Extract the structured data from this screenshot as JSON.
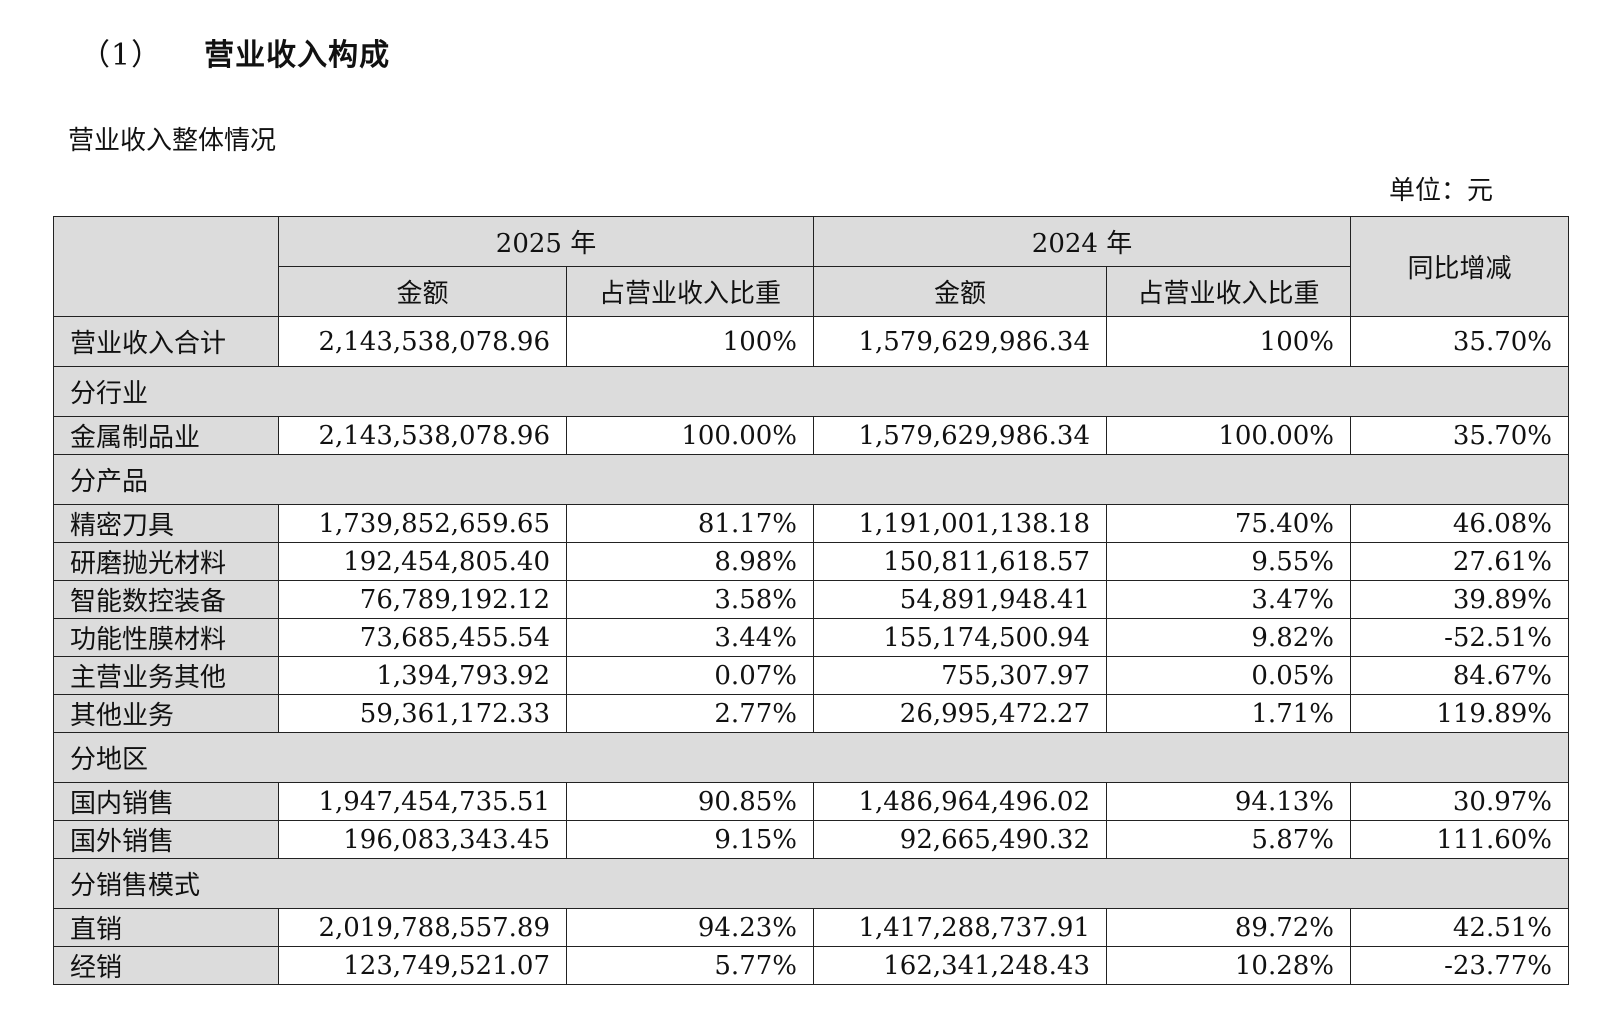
{
  "heading": {
    "number": "（1）",
    "title": "营业收入构成"
  },
  "subtitle": "营业收入整体情况",
  "unit": "单位：元",
  "table": {
    "year_2025": "2025 年",
    "year_2024": "2024 年",
    "col_amount": "金额",
    "col_ratio": "占营业收入比重",
    "col_yoy": "同比增减",
    "total": {
      "label": "营业收入合计",
      "v1": "2,143,538,078.96",
      "v2": "100%",
      "v3": "1,579,629,986.34",
      "v4": "100%",
      "v5": "35.70%"
    },
    "sec_industry": "分行业",
    "industry": [
      {
        "label": "金属制品业",
        "v1": "2,143,538,078.96",
        "v2": "100.00%",
        "v3": "1,579,629,986.34",
        "v4": "100.00%",
        "v5": "35.70%"
      }
    ],
    "sec_product": "分产品",
    "product": [
      {
        "label": "精密刀具",
        "v1": "1,739,852,659.65",
        "v2": "81.17%",
        "v3": "1,191,001,138.18",
        "v4": "75.40%",
        "v5": "46.08%"
      },
      {
        "label": "研磨抛光材料",
        "v1": "192,454,805.40",
        "v2": "8.98%",
        "v3": "150,811,618.57",
        "v4": "9.55%",
        "v5": "27.61%"
      },
      {
        "label": "智能数控装备",
        "v1": "76,789,192.12",
        "v2": "3.58%",
        "v3": "54,891,948.41",
        "v4": "3.47%",
        "v5": "39.89%"
      },
      {
        "label": "功能性膜材料",
        "v1": "73,685,455.54",
        "v2": "3.44%",
        "v3": "155,174,500.94",
        "v4": "9.82%",
        "v5": "-52.51%"
      },
      {
        "label": "主营业务其他",
        "v1": "1,394,793.92",
        "v2": "0.07%",
        "v3": "755,307.97",
        "v4": "0.05%",
        "v5": "84.67%"
      },
      {
        "label": "其他业务",
        "v1": "59,361,172.33",
        "v2": "2.77%",
        "v3": "26,995,472.27",
        "v4": "1.71%",
        "v5": "119.89%"
      }
    ],
    "sec_region": "分地区",
    "region": [
      {
        "label": "国内销售",
        "v1": "1,947,454,735.51",
        "v2": "90.85%",
        "v3": "1,486,964,496.02",
        "v4": "94.13%",
        "v5": "30.97%"
      },
      {
        "label": "国外销售",
        "v1": "196,083,343.45",
        "v2": "9.15%",
        "v3": "92,665,490.32",
        "v4": "5.87%",
        "v5": "111.60%"
      }
    ],
    "sec_sales": "分销售模式",
    "sales": [
      {
        "label": "直销",
        "v1": "2,019,788,557.89",
        "v2": "94.23%",
        "v3": "1,417,288,737.91",
        "v4": "89.72%",
        "v5": "42.51%"
      },
      {
        "label": "经销",
        "v1": "123,749,521.07",
        "v2": "5.77%",
        "v3": "162,341,248.43",
        "v4": "10.28%",
        "v5": "-23.77%"
      }
    ]
  }
}
